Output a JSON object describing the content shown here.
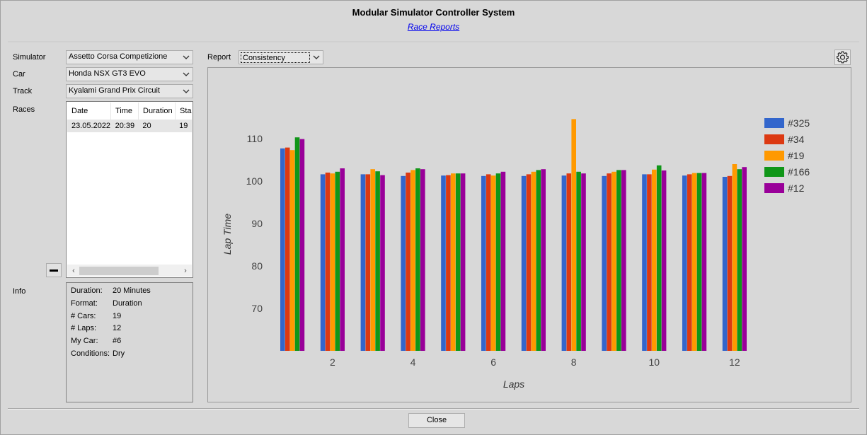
{
  "window": {
    "title": "Modular Simulator Controller System",
    "subtitle": "Race Reports"
  },
  "selectors": {
    "simulator_label": "Simulator",
    "simulator_value": "Assetto Corsa Competizione",
    "car_label": "Car",
    "car_value": "Honda NSX GT3 EVO",
    "track_label": "Track",
    "track_value": "Kyalami Grand Prix Circuit",
    "races_label": "Races"
  },
  "races_table": {
    "columns": [
      "Date",
      "Time",
      "Duration",
      "Sta"
    ],
    "rows": [
      [
        "23.05.2022",
        "20:39",
        "20",
        "19"
      ]
    ]
  },
  "info": {
    "label": "Info",
    "rows": [
      {
        "k": "Duration:",
        "v": "20 Minutes"
      },
      {
        "k": "Format:",
        "v": "Duration"
      },
      {
        "k": "# Cars:",
        "v": "19"
      },
      {
        "k": "# Laps:",
        "v": "12"
      },
      {
        "k": "My Car:",
        "v": "#6"
      },
      {
        "k": "Conditions:",
        "v": "Dry"
      }
    ]
  },
  "report": {
    "label": "Report",
    "value": "Consistency"
  },
  "icons": {
    "settings": "gear-icon",
    "remove": "minus-icon",
    "dropdown": "chevron-down-icon"
  },
  "buttons": {
    "close": "Close"
  },
  "chart_data": {
    "type": "bar",
    "xlabel": "Laps",
    "ylabel": "Lap Time",
    "ylim": [
      60,
      116
    ],
    "yticks": [
      70,
      80,
      90,
      100,
      110
    ],
    "xtick_labels": [
      "2",
      "4",
      "6",
      "8",
      "10",
      "12"
    ],
    "xtick_laps": [
      2,
      4,
      6,
      8,
      10,
      12
    ],
    "categories": [
      1,
      2,
      3,
      4,
      5,
      6,
      7,
      8,
      9,
      10,
      11,
      12
    ],
    "legend_position": "right-top",
    "series": [
      {
        "name": "#325",
        "color": "#3366cc",
        "values": [
          107.7,
          101.6,
          101.6,
          101.2,
          101.3,
          101.2,
          101.2,
          101.3,
          101.2,
          101.6,
          101.3,
          101.0
        ]
      },
      {
        "name": "#34",
        "color": "#dc3912",
        "values": [
          107.9,
          102.0,
          101.6,
          102.0,
          101.4,
          101.6,
          101.6,
          101.8,
          101.8,
          101.6,
          101.6,
          101.2
        ]
      },
      {
        "name": "#19",
        "color": "#ff9900",
        "values": [
          107.3,
          101.8,
          102.8,
          102.6,
          101.8,
          101.3,
          102.2,
          114.6,
          102.2,
          102.7,
          101.9,
          104.0
        ]
      },
      {
        "name": "#166",
        "color": "#109618",
        "values": [
          110.3,
          102.2,
          102.3,
          103.0,
          101.8,
          101.8,
          102.6,
          102.2,
          102.6,
          103.7,
          101.9,
          102.8
        ]
      },
      {
        "name": "#12",
        "color": "#990099",
        "values": [
          109.9,
          103.0,
          101.4,
          102.8,
          101.8,
          102.2,
          102.8,
          101.8,
          102.6,
          102.5,
          101.9,
          103.3
        ]
      }
    ]
  }
}
